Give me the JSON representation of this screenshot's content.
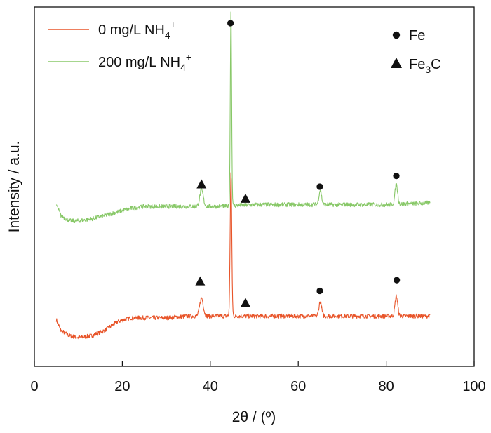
{
  "chart_data": {
    "type": "line",
    "xlabel": "2θ / (º)",
    "ylabel": "Intensity / a.u.",
    "xlim": [
      0,
      100
    ],
    "x_ticks": [
      "0",
      "20",
      "40",
      "60",
      "80",
      "100"
    ],
    "y_ticks_shown": false,
    "grid": false,
    "legend_position": "top-left",
    "series": [
      {
        "name": "0 mg/L NH4+",
        "name_parts": {
          "base": "0 mg/L NH",
          "sub": "4",
          "sup": "+"
        },
        "color": "#e8552a",
        "x_range": [
          5,
          90
        ],
        "baseline": 0.12,
        "profile": [
          [
            5,
            0.13
          ],
          [
            6,
            0.1
          ],
          [
            8,
            0.085
          ],
          [
            10,
            0.08
          ],
          [
            13,
            0.085
          ],
          [
            16,
            0.1
          ],
          [
            19,
            0.125
          ],
          [
            22,
            0.135
          ],
          [
            25,
            0.135
          ],
          [
            30,
            0.135
          ],
          [
            35,
            0.14
          ],
          [
            38,
            0.14
          ],
          [
            42,
            0.14
          ],
          [
            50,
            0.14
          ],
          [
            60,
            0.14
          ],
          [
            70,
            0.14
          ],
          [
            80,
            0.14
          ],
          [
            90,
            0.14
          ]
        ],
        "peaks": [
          {
            "x": 38.0,
            "height": 0.05,
            "width": 0.4
          },
          {
            "x": 44.7,
            "height": 0.4,
            "width": 0.18
          },
          {
            "x": 65.0,
            "height": 0.04,
            "width": 0.3
          },
          {
            "x": 82.3,
            "height": 0.055,
            "width": 0.3
          }
        ]
      },
      {
        "name": "200 mg/L NH4+",
        "name_parts": {
          "base": "200 mg/L NH",
          "sub": "4",
          "sup": "+"
        },
        "color": "#88c868",
        "x_range": [
          5,
          90
        ],
        "profile": [
          [
            5,
            0.45
          ],
          [
            6,
            0.42
          ],
          [
            8,
            0.405
          ],
          [
            10,
            0.405
          ],
          [
            13,
            0.41
          ],
          [
            16,
            0.42
          ],
          [
            19,
            0.43
          ],
          [
            22,
            0.44
          ],
          [
            25,
            0.445
          ],
          [
            30,
            0.445
          ],
          [
            35,
            0.445
          ],
          [
            38,
            0.445
          ],
          [
            42,
            0.445
          ],
          [
            50,
            0.45
          ],
          [
            60,
            0.45
          ],
          [
            70,
            0.45
          ],
          [
            80,
            0.45
          ],
          [
            90,
            0.455
          ]
        ],
        "peaks": [
          {
            "x": 38.0,
            "height": 0.045,
            "width": 0.4
          },
          {
            "x": 44.7,
            "height": 0.55,
            "width": 0.15
          },
          {
            "x": 65.0,
            "height": 0.04,
            "width": 0.3
          },
          {
            "x": 82.3,
            "height": 0.055,
            "width": 0.3
          }
        ]
      }
    ],
    "markers": [
      {
        "series": 0,
        "symbol": "circle",
        "x": 44.6,
        "y": 0.955
      },
      {
        "series": 1,
        "symbol": "triangle",
        "x": 38.0,
        "y": 0.505
      },
      {
        "series": 1,
        "symbol": "triangle",
        "x": 48.0,
        "y": 0.465
      },
      {
        "series": 1,
        "symbol": "circle",
        "x": 64.9,
        "y": 0.5
      },
      {
        "series": 1,
        "symbol": "circle",
        "x": 82.3,
        "y": 0.53
      },
      {
        "series": 0,
        "symbol": "triangle",
        "x": 37.7,
        "y": 0.235
      },
      {
        "series": 0,
        "symbol": "triangle",
        "x": 48.0,
        "y": 0.175
      },
      {
        "series": 0,
        "symbol": "circle",
        "x": 64.9,
        "y": 0.21
      },
      {
        "series": 0,
        "symbol": "circle",
        "x": 82.4,
        "y": 0.24
      }
    ],
    "marker_legend": [
      {
        "symbol": "circle",
        "label": "Fe",
        "label_parts": {
          "base": "Fe",
          "sub": "",
          "tail": ""
        }
      },
      {
        "symbol": "triangle",
        "label": "Fe3C",
        "label_parts": {
          "base": "Fe",
          "sub": "3",
          "tail": "C"
        }
      }
    ]
  }
}
